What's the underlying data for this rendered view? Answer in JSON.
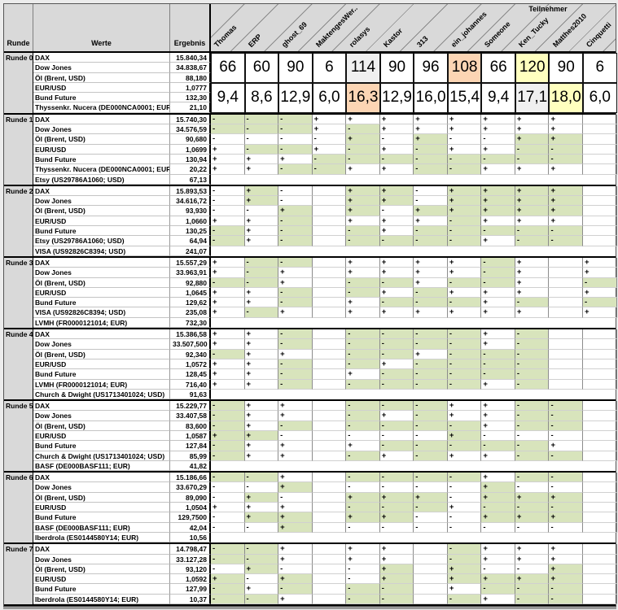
{
  "header": {
    "runde": "Runde",
    "werte": "Werte",
    "ergebnis": "Ergebnis",
    "teilnehmer": "Teilnehmer"
  },
  "participants": [
    "Thomas",
    "ERP",
    "ghost_69",
    "MaktengesWer..",
    "rolasys",
    "Kastor",
    "313",
    "ein_johannes",
    "Someone",
    "Ken_Tucky",
    "Matthes2010",
    "Cinquetti"
  ],
  "colors": {
    "correct_green": "#d8e4bc",
    "gold": "#ffffbf",
    "silver": "#f0f0f0",
    "bronze": "#fcd5b4",
    "header_gray": "#d9d9d9"
  },
  "rounds": [
    {
      "label": "Runde 0",
      "rows": [
        {
          "name": "DAX",
          "result": "15.840,34"
        },
        {
          "name": "Dow Jones",
          "result": "34.838,67"
        },
        {
          "name": "Öl (Brent, USD)",
          "result": "88,180"
        },
        {
          "name": "EUR/USD",
          "result": "1,0777"
        },
        {
          "name": "Bund Future",
          "result": "132,30"
        },
        {
          "name": "Thyssenkr. Nucera (DE000NCA0001; EUR)",
          "result": "21,10"
        }
      ],
      "scores": {
        "points": [
          {
            "v": "66",
            "hl": ""
          },
          {
            "v": "60",
            "hl": ""
          },
          {
            "v": "90",
            "hl": ""
          },
          {
            "v": "6",
            "hl": ""
          },
          {
            "v": "114",
            "hl": "silver"
          },
          {
            "v": "90",
            "hl": ""
          },
          {
            "v": "96",
            "hl": ""
          },
          {
            "v": "108",
            "hl": "bronze"
          },
          {
            "v": "66",
            "hl": ""
          },
          {
            "v": "120",
            "hl": "gold"
          },
          {
            "v": "90",
            "hl": ""
          },
          {
            "v": "6",
            "hl": ""
          }
        ],
        "averages": [
          {
            "v": "9,4",
            "hl": ""
          },
          {
            "v": "8,6",
            "hl": ""
          },
          {
            "v": "12,9",
            "hl": ""
          },
          {
            "v": "6,0",
            "hl": ""
          },
          {
            "v": "16,3",
            "hl": "bronze"
          },
          {
            "v": "12,9",
            "hl": ""
          },
          {
            "v": "16,0",
            "hl": ""
          },
          {
            "v": "15,4",
            "hl": ""
          },
          {
            "v": "9,4",
            "hl": ""
          },
          {
            "v": "17,1",
            "hl": "silver"
          },
          {
            "v": "18,0",
            "hl": "gold"
          },
          {
            "v": "6,0",
            "hl": ""
          }
        ]
      }
    },
    {
      "label": "Runde 1",
      "rows": [
        {
          "name": "DAX",
          "result": "15.740,30",
          "marks": [
            "-g",
            "-g",
            "-g",
            "+w",
            "+w",
            "+w",
            "+w",
            "+w",
            "+w",
            "+w",
            "+w",
            ""
          ]
        },
        {
          "name": "Dow Jones",
          "result": "34.576,59",
          "marks": [
            "-g",
            "-g",
            "-g",
            "+w",
            "-g",
            "+w",
            "+w",
            "+w",
            "+w",
            "+w",
            "+w",
            ""
          ]
        },
        {
          "name": "Öl (Brent, USD)",
          "result": "90,680",
          "marks": [
            "-w",
            "-w",
            "-w",
            "-w",
            "+g",
            "-w",
            "+g",
            "-w",
            "-w",
            "+g",
            "+g",
            ""
          ]
        },
        {
          "name": "EUR/USD",
          "result": "1,0699",
          "marks": [
            "+w",
            "-g",
            "-g",
            "+w",
            "-g",
            "+w",
            "-g",
            "+w",
            "+w",
            "-g",
            "-g",
            ""
          ]
        },
        {
          "name": "Bund Future",
          "result": "130,94",
          "marks": [
            "+w",
            "+w",
            "+w",
            "-g",
            "-g",
            "-g",
            "-g",
            "-g",
            "-g",
            "-g",
            "-g",
            ""
          ]
        },
        {
          "name": "Thyssenkr. Nucera (DE000NCA0001; EUR)",
          "result": "20,22",
          "marks": [
            "+w",
            "+w",
            "-g",
            "-g",
            "+w",
            "+w",
            "-g",
            "-g",
            "+w",
            "+w",
            "+w",
            ""
          ]
        },
        {
          "name": "Etsy (US29786A1060; USD)",
          "result": "67,13",
          "marks": null
        }
      ]
    },
    {
      "label": "Runde 2",
      "rows": [
        {
          "name": "DAX",
          "result": "15.893,53",
          "marks": [
            "-w",
            "+g",
            "-w",
            "",
            "+g",
            "+g",
            "-w",
            "+g",
            "+g",
            "+g",
            "+g",
            ""
          ]
        },
        {
          "name": "Dow Jones",
          "result": "34.616,72",
          "marks": [
            "-w",
            "+g",
            "-w",
            "",
            "+g",
            "+g",
            "-w",
            "+g",
            "+g",
            "+g",
            "+g",
            ""
          ]
        },
        {
          "name": "Öl (Brent, USD)",
          "result": "93,930",
          "marks": [
            "-w",
            "-w",
            "+g",
            "",
            "+g",
            "-w",
            "+g",
            "+g",
            "+g",
            "+g",
            "+g",
            ""
          ]
        },
        {
          "name": "EUR/USD",
          "result": "1,0660",
          "marks": [
            "+w",
            "+w",
            "-g",
            "",
            "+w",
            "+w",
            "+w",
            "-g",
            "+w",
            "+w",
            "+w",
            ""
          ]
        },
        {
          "name": "Bund Future",
          "result": "130,25",
          "marks": [
            "-g",
            "+w",
            "-g",
            "",
            "-g",
            "+w",
            "-g",
            "-g",
            "-g",
            "-g",
            "-g",
            ""
          ]
        },
        {
          "name": "Etsy (US29786A1060; USD)",
          "result": "64,94",
          "marks": [
            "-g",
            "+w",
            "-g",
            "",
            "-g",
            "-g",
            "-g",
            "-g",
            "+w",
            "-g",
            "-g",
            ""
          ]
        },
        {
          "name": "VISA (US92826C8394; USD)",
          "result": "241,07",
          "marks": null
        }
      ]
    },
    {
      "label": "Runde 3",
      "rows": [
        {
          "name": "DAX",
          "result": "15.557,29",
          "marks": [
            "+w",
            "-g",
            "-g",
            "",
            "+w",
            "+w",
            "+w",
            "+w",
            "-g",
            "+w",
            "",
            "+w"
          ]
        },
        {
          "name": "Dow Jones",
          "result": "33.963,91",
          "marks": [
            "+w",
            "-g",
            "+w",
            "",
            "+w",
            "+w",
            "+w",
            "+w",
            "-g",
            "+w",
            "",
            "+w"
          ]
        },
        {
          "name": "Öl (Brent, USD)",
          "result": "92,880",
          "marks": [
            "-g",
            "-g",
            "+w",
            "",
            "-g",
            "-g",
            "+w",
            "-g",
            "-g",
            "+w",
            "",
            "-g"
          ]
        },
        {
          "name": "EUR/USD",
          "result": "1,0645",
          "marks": [
            "+w",
            "+w",
            "-g",
            "",
            "-g",
            "+w",
            "-g",
            "+w",
            "+w",
            "+w",
            "",
            "+w"
          ]
        },
        {
          "name": "Bund Future",
          "result": "129,62",
          "marks": [
            "+w",
            "+w",
            "-g",
            "",
            "+w",
            "-g",
            "-g",
            "-g",
            "+w",
            "-g",
            "",
            "-g"
          ]
        },
        {
          "name": "VISA (US92826C8394; USD)",
          "result": "235,08",
          "marks": [
            "+w",
            "-g",
            "+w",
            "",
            "+w",
            "+w",
            "+w",
            "+w",
            "+w",
            "+w",
            "",
            "+w"
          ]
        },
        {
          "name": "LVMH (FR0000121014; EUR)",
          "result": "732,30",
          "marks": null
        }
      ]
    },
    {
      "label": "Runde 4",
      "rows": [
        {
          "name": "DAX",
          "result": "15.386,58",
          "marks": [
            "+w",
            "+w",
            "-g",
            "",
            "-g",
            "-g",
            "-g",
            "-g",
            "+w",
            "-g",
            "",
            ""
          ]
        },
        {
          "name": "Dow Jones",
          "result": "33.507,500",
          "marks": [
            "+w",
            "+w",
            "-g",
            "",
            "-g",
            "-g",
            "-g",
            "-g",
            "+w",
            "-g",
            "",
            ""
          ]
        },
        {
          "name": "Öl (Brent, USD)",
          "result": "92,340",
          "marks": [
            "-g",
            "+w",
            "+w",
            "",
            "-g",
            "-g",
            "+w",
            "-g",
            "-g",
            "-g",
            "",
            ""
          ]
        },
        {
          "name": "EUR/USD",
          "result": "1,0572",
          "marks": [
            "+w",
            "+w",
            "-g",
            "",
            "-g",
            "+w",
            "-g",
            "-g",
            "-g",
            "-g",
            "",
            ""
          ]
        },
        {
          "name": "Bund Future",
          "result": "128,45",
          "marks": [
            "+w",
            "+w",
            "-g",
            "",
            "+w",
            "-g",
            "-g",
            "-g",
            "-g",
            "-g",
            "",
            ""
          ]
        },
        {
          "name": "LVMH (FR0000121014; EUR)",
          "result": "716,40",
          "marks": [
            "+w",
            "+w",
            "-g",
            "",
            "-g",
            "-g",
            "-g",
            "-g",
            "+w",
            "-g",
            "",
            ""
          ]
        },
        {
          "name": "Church & Dwight (US1713401024; USD)",
          "result": "91,63",
          "marks": null
        }
      ]
    },
    {
      "label": "Runde 5",
      "rows": [
        {
          "name": "DAX",
          "result": "15.229,77",
          "marks": [
            "-g",
            "+w",
            "+w",
            "",
            "-g",
            "-g",
            "-g",
            "+w",
            "+w",
            "-g",
            "-g",
            ""
          ]
        },
        {
          "name": "Dow Jones",
          "result": "33.407,58",
          "marks": [
            "-g",
            "+w",
            "+w",
            "",
            "-g",
            "+w",
            "-g",
            "+w",
            "+w",
            "-g",
            "-g",
            ""
          ]
        },
        {
          "name": "Öl (Brent, USD)",
          "result": "83,600",
          "marks": [
            "-g",
            "+w",
            "-g",
            "",
            "-g",
            "-g",
            "-g",
            "-g",
            "+w",
            "-g",
            "-g",
            ""
          ]
        },
        {
          "name": "EUR/USD",
          "result": "1,0587",
          "marks": [
            "+g",
            "+g",
            "-w",
            "",
            "-w",
            "-w",
            "-w",
            "+g",
            "-w",
            "-w",
            "-w",
            ""
          ]
        },
        {
          "name": "Bund Future",
          "result": "127,84",
          "marks": [
            "-g",
            "+w",
            "+w",
            "",
            "+w",
            "-g",
            "-g",
            "-g",
            "-g",
            "-g",
            "+w",
            ""
          ]
        },
        {
          "name": "Church & Dwight (US1713401024; USD)",
          "result": "85,99",
          "marks": [
            "-g",
            "+w",
            "+w",
            "",
            "-g",
            "+w",
            "-g",
            "+w",
            "+w",
            "-g",
            "-g",
            ""
          ]
        },
        {
          "name": "BASF (DE000BASF111; EUR)",
          "result": "41,82",
          "marks": null
        }
      ]
    },
    {
      "label": "Runde 6",
      "rows": [
        {
          "name": "DAX",
          "result": "15.186,66",
          "marks": [
            "-g",
            "-g",
            "+w",
            "",
            "-g",
            "-g",
            "-g",
            "-g",
            "+w",
            "-g",
            "-g",
            ""
          ]
        },
        {
          "name": "Dow Jones",
          "result": "33.670,29",
          "marks": [
            "-w",
            "-w",
            "+g",
            "",
            "-w",
            "-w",
            "-w",
            "-w",
            "+g",
            "-w",
            "-w",
            ""
          ]
        },
        {
          "name": "Öl (Brent, USD)",
          "result": "89,090",
          "marks": [
            "-w",
            "+g",
            "-w",
            "",
            "+g",
            "+g",
            "+g",
            "-w",
            "+g",
            "+g",
            "+g",
            ""
          ]
        },
        {
          "name": "EUR/USD",
          "result": "1,0504",
          "marks": [
            "+w",
            "+w",
            "+w",
            "",
            "-g",
            "-g",
            "-g",
            "+w",
            "-g",
            "-g",
            "-g",
            ""
          ]
        },
        {
          "name": "Bund Future",
          "result": "129,7500",
          "marks": [
            "-w",
            "+g",
            "+g",
            "",
            "+g",
            "+g",
            "-w",
            "-w",
            "+g",
            "+g",
            "+g",
            ""
          ]
        },
        {
          "name": "BASF (DE000BASF111; EUR)",
          "result": "42,04",
          "marks": [
            "-w",
            "-w",
            "+g",
            "",
            "-w",
            "-w",
            "-w",
            "-w",
            "-w",
            "-w",
            "-w",
            ""
          ]
        },
        {
          "name": "Iberdrola (ES0144580Y14; EUR)",
          "result": "10,56",
          "marks": null
        }
      ]
    },
    {
      "label": "Runde 7",
      "rows": [
        {
          "name": "DAX",
          "result": "14.798,47",
          "marks": [
            "-g",
            "-g",
            "+w",
            "",
            "+w",
            "+w",
            "",
            "-g",
            "+w",
            "+w",
            "+w",
            ""
          ]
        },
        {
          "name": "Dow Jones",
          "result": "33.127,28",
          "marks": [
            "-g",
            "-g",
            "+w",
            "",
            "+w",
            "+w",
            "",
            "-g",
            "+w",
            "+w",
            "+w",
            ""
          ]
        },
        {
          "name": "Öl (Brent, USD)",
          "result": "93,120",
          "marks": [
            "-w",
            "+g",
            "-w",
            "",
            "-w",
            "+g",
            "",
            "+g",
            "-w",
            "-w",
            "+g",
            ""
          ]
        },
        {
          "name": "EUR/USD",
          "result": "1,0592",
          "marks": [
            "+g",
            "-w",
            "+g",
            "",
            "-w",
            "+g",
            "",
            "+g",
            "+g",
            "+g",
            "+g",
            ""
          ]
        },
        {
          "name": "Bund Future",
          "result": "127,99",
          "marks": [
            "-g",
            "+w",
            "-g",
            "",
            "-g",
            "-g",
            "",
            "+w",
            "-g",
            "-g",
            "-g",
            ""
          ]
        },
        {
          "name": "Iberdrola (ES0144580Y14; EUR)",
          "result": "10,37",
          "marks": [
            "-g",
            "-g",
            "+w",
            "",
            "-g",
            "-g",
            "",
            "-g",
            "+w",
            "-g",
            "-g",
            ""
          ]
        }
      ]
    }
  ]
}
